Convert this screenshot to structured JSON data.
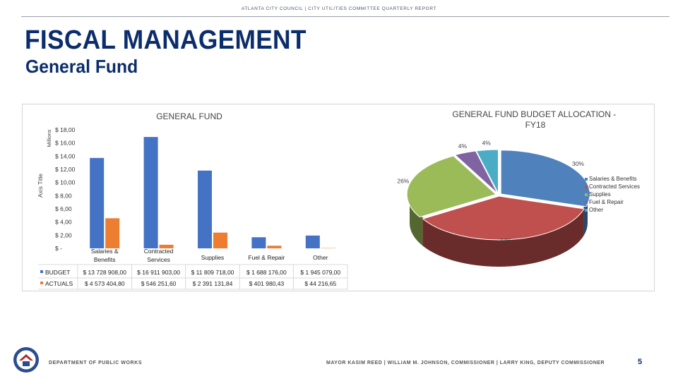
{
  "header": {
    "text": "ATLANTA CITY COUNCIL  |  CITY UTILITIES COMMITTEE QUARTERLY REPORT"
  },
  "slide": {
    "title": "FISCAL MANAGEMENT",
    "subtitle": "General Fund"
  },
  "footer": {
    "left": "DEPARTMENT OF PUBLIC WORKS",
    "right": "MAYOR KASIM REED   |   WILLIAM M. JOHNSON, COMMISSIONER   |   LARRY KING, DEPUTY COMMISSIONER",
    "page_number": "5"
  },
  "chart_data": [
    {
      "type": "bar",
      "title": "GENERAL FUND",
      "ylabel": "Axis Title",
      "units_label": "Millions",
      "ylim": [
        0,
        18
      ],
      "y_ticks": [
        "$ -",
        "$ 2,00",
        "$ 4,00",
        "$ 6,00",
        "$ 8,00",
        "$ 10,00",
        "$ 12,00",
        "$ 14,00",
        "$ 16,00",
        "$ 18,00"
      ],
      "categories": [
        "Salaries & Benefits",
        "Contracted Services",
        "Supplies",
        "Fuel & Repair",
        "Other"
      ],
      "series": [
        {
          "name": "BUDGET",
          "color": "#4472c4",
          "values": [
            13.728908,
            16.911903,
            11.809718,
            1.688176,
            1.945079
          ],
          "labels": [
            "$ 13 728 908,00",
            "$ 16 911 903,00",
            "$ 11 809 718,00",
            "$ 1 688 176,00",
            "$ 1 945 079,00"
          ]
        },
        {
          "name": "ACTUALS",
          "color": "#ed7d31",
          "values": [
            4.5734048,
            0.5462516,
            2.3911318,
            0.4019804,
            0.0442166
          ],
          "labels": [
            "$ 4 573 404,80",
            "$ 546 251,60",
            "$ 2 391 131,84",
            "$ 401 980,43",
            "$ 44 216,65"
          ]
        }
      ]
    },
    {
      "type": "pie",
      "title": "GENERAL FUND BUDGET ALLOCATION - FY18",
      "categories": [
        "Salaries & Benefits",
        "Contracted Services",
        "Supplies",
        "Fuel & Repair",
        "Other"
      ],
      "values": [
        30,
        37,
        26,
        4,
        4
      ],
      "labels": [
        "30%",
        "37%",
        "26%",
        "4%",
        "4%"
      ],
      "colors": [
        "#4f81bd",
        "#c0504d",
        "#9bbb59",
        "#8064a2",
        "#4bacc6"
      ]
    }
  ]
}
